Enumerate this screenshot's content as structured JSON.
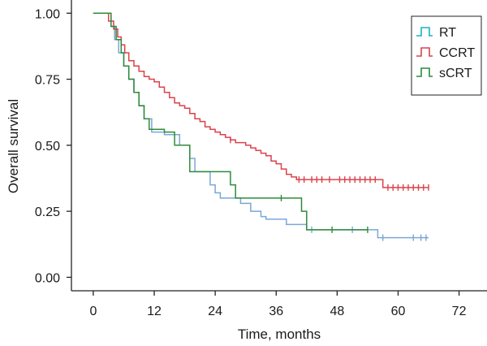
{
  "chart_data": {
    "type": "line",
    "subtype": "kaplan-meier step",
    "title": "",
    "xlabel": "Time, months",
    "ylabel": "Overall survival",
    "xlim": [
      -4.3,
      77.5
    ],
    "ylim": [
      -0.051,
      1.05
    ],
    "xticks": [
      0,
      12,
      24,
      36,
      48,
      60,
      72
    ],
    "yticks": [
      0.0,
      0.25,
      0.5,
      0.75,
      1.0
    ],
    "yticklabels": [
      "0.00",
      "0.25",
      "0.50",
      "0.75",
      "1.00"
    ],
    "grid": false,
    "legend": {
      "position": "top-right"
    },
    "series": [
      {
        "name": "RT",
        "color": "#7aa7d6",
        "legend_color": "#1ab0c8",
        "points": [
          [
            0,
            1
          ],
          [
            3.5,
            1
          ],
          [
            3.5,
            0.95
          ],
          [
            4.2,
            0.95
          ],
          [
            4.2,
            0.9
          ],
          [
            5,
            0.9
          ],
          [
            5,
            0.85
          ],
          [
            6,
            0.85
          ],
          [
            6,
            0.8
          ],
          [
            7,
            0.8
          ],
          [
            7,
            0.75
          ],
          [
            8,
            0.75
          ],
          [
            8,
            0.7
          ],
          [
            9,
            0.7
          ],
          [
            9,
            0.65
          ],
          [
            10,
            0.65
          ],
          [
            10,
            0.6
          ],
          [
            11.5,
            0.6
          ],
          [
            11.5,
            0.55
          ],
          [
            14,
            0.55
          ],
          [
            14,
            0.54
          ],
          [
            17,
            0.54
          ],
          [
            17,
            0.5
          ],
          [
            19,
            0.5
          ],
          [
            19,
            0.45
          ],
          [
            20,
            0.45
          ],
          [
            20,
            0.4
          ],
          [
            23,
            0.4
          ],
          [
            23,
            0.35
          ],
          [
            24,
            0.35
          ],
          [
            24,
            0.32
          ],
          [
            25,
            0.32
          ],
          [
            25,
            0.3
          ],
          [
            29,
            0.3
          ],
          [
            29,
            0.28
          ],
          [
            31,
            0.28
          ],
          [
            31,
            0.25
          ],
          [
            33,
            0.25
          ],
          [
            33,
            0.23
          ],
          [
            34,
            0.23
          ],
          [
            34,
            0.22
          ],
          [
            38,
            0.22
          ],
          [
            38,
            0.2
          ],
          [
            42,
            0.2
          ],
          [
            42,
            0.18
          ],
          [
            56,
            0.18
          ],
          [
            56,
            0.15
          ],
          [
            66,
            0.15
          ]
        ],
        "censored": [
          [
            43,
            0.18
          ],
          [
            51,
            0.18
          ],
          [
            57,
            0.15
          ],
          [
            63,
            0.15
          ],
          [
            64.5,
            0.15
          ],
          [
            65.5,
            0.15
          ]
        ]
      },
      {
        "name": "CCRT",
        "color": "#d9434c",
        "legend_color": "#d9434c",
        "points": [
          [
            0,
            1
          ],
          [
            3,
            1
          ],
          [
            3,
            0.97
          ],
          [
            4,
            0.97
          ],
          [
            4,
            0.94
          ],
          [
            4.8,
            0.94
          ],
          [
            4.8,
            0.91
          ],
          [
            5.5,
            0.91
          ],
          [
            5.5,
            0.88
          ],
          [
            6.2,
            0.88
          ],
          [
            6.2,
            0.85
          ],
          [
            7,
            0.85
          ],
          [
            7,
            0.82
          ],
          [
            8,
            0.82
          ],
          [
            8,
            0.8
          ],
          [
            9,
            0.8
          ],
          [
            9,
            0.78
          ],
          [
            10,
            0.78
          ],
          [
            10,
            0.76
          ],
          [
            11,
            0.76
          ],
          [
            11,
            0.75
          ],
          [
            12,
            0.75
          ],
          [
            12,
            0.74
          ],
          [
            13,
            0.74
          ],
          [
            13,
            0.72
          ],
          [
            14,
            0.72
          ],
          [
            14,
            0.7
          ],
          [
            15,
            0.7
          ],
          [
            15,
            0.68
          ],
          [
            16,
            0.68
          ],
          [
            16,
            0.66
          ],
          [
            17,
            0.66
          ],
          [
            17,
            0.65
          ],
          [
            18,
            0.65
          ],
          [
            18,
            0.64
          ],
          [
            19,
            0.64
          ],
          [
            19,
            0.62
          ],
          [
            20,
            0.62
          ],
          [
            20,
            0.6
          ],
          [
            21,
            0.6
          ],
          [
            21,
            0.59
          ],
          [
            22,
            0.59
          ],
          [
            22,
            0.57
          ],
          [
            23,
            0.57
          ],
          [
            23,
            0.56
          ],
          [
            24,
            0.56
          ],
          [
            24,
            0.55
          ],
          [
            25,
            0.55
          ],
          [
            25,
            0.54
          ],
          [
            26,
            0.54
          ],
          [
            26,
            0.53
          ],
          [
            27,
            0.53
          ],
          [
            27,
            0.52
          ],
          [
            28,
            0.52
          ],
          [
            28,
            0.51
          ],
          [
            30,
            0.51
          ],
          [
            30,
            0.5
          ],
          [
            31,
            0.5
          ],
          [
            31,
            0.49
          ],
          [
            32,
            0.49
          ],
          [
            32,
            0.48
          ],
          [
            33,
            0.48
          ],
          [
            33,
            0.47
          ],
          [
            34,
            0.47
          ],
          [
            34,
            0.46
          ],
          [
            35,
            0.46
          ],
          [
            35,
            0.44
          ],
          [
            36,
            0.44
          ],
          [
            36,
            0.43
          ],
          [
            37,
            0.43
          ],
          [
            37,
            0.41
          ],
          [
            38,
            0.41
          ],
          [
            38,
            0.39
          ],
          [
            39,
            0.39
          ],
          [
            39,
            0.38
          ],
          [
            40,
            0.38
          ],
          [
            40,
            0.37
          ],
          [
            57,
            0.37
          ],
          [
            57,
            0.34
          ],
          [
            66,
            0.34
          ]
        ],
        "censored": [
          [
            27,
            0.52
          ],
          [
            40.5,
            0.37
          ],
          [
            41.5,
            0.37
          ],
          [
            43,
            0.37
          ],
          [
            44,
            0.37
          ],
          [
            45,
            0.37
          ],
          [
            46.5,
            0.37
          ],
          [
            48.5,
            0.37
          ],
          [
            49.5,
            0.37
          ],
          [
            50.5,
            0.37
          ],
          [
            51.5,
            0.37
          ],
          [
            52.5,
            0.37
          ],
          [
            53.5,
            0.37
          ],
          [
            54.5,
            0.37
          ],
          [
            55.5,
            0.37
          ],
          [
            58,
            0.34
          ],
          [
            59,
            0.34
          ],
          [
            60,
            0.34
          ],
          [
            61,
            0.34
          ],
          [
            62,
            0.34
          ],
          [
            63,
            0.34
          ],
          [
            64,
            0.34
          ],
          [
            65,
            0.34
          ],
          [
            66,
            0.34
          ]
        ]
      },
      {
        "name": "sCRT",
        "color": "#2e8b3a",
        "legend_color": "#2e8b3a",
        "points": [
          [
            0,
            1
          ],
          [
            3.5,
            1
          ],
          [
            3.5,
            0.95
          ],
          [
            4.5,
            0.95
          ],
          [
            4.5,
            0.9
          ],
          [
            5.5,
            0.9
          ],
          [
            5.5,
            0.85
          ],
          [
            6,
            0.85
          ],
          [
            6,
            0.8
          ],
          [
            7,
            0.8
          ],
          [
            7,
            0.75
          ],
          [
            8,
            0.75
          ],
          [
            8,
            0.7
          ],
          [
            9,
            0.7
          ],
          [
            9,
            0.65
          ],
          [
            10,
            0.65
          ],
          [
            10,
            0.6
          ],
          [
            11,
            0.6
          ],
          [
            11,
            0.56
          ],
          [
            14,
            0.56
          ],
          [
            14,
            0.55
          ],
          [
            16,
            0.55
          ],
          [
            16,
            0.5
          ],
          [
            19,
            0.5
          ],
          [
            19,
            0.4
          ],
          [
            27,
            0.4
          ],
          [
            27,
            0.35
          ],
          [
            28,
            0.35
          ],
          [
            28,
            0.3
          ],
          [
            41,
            0.3
          ],
          [
            41,
            0.25
          ],
          [
            42,
            0.25
          ],
          [
            42,
            0.18
          ],
          [
            54,
            0.18
          ]
        ],
        "censored": [
          [
            37,
            0.3
          ],
          [
            47,
            0.18
          ],
          [
            54,
            0.18
          ]
        ]
      }
    ]
  }
}
